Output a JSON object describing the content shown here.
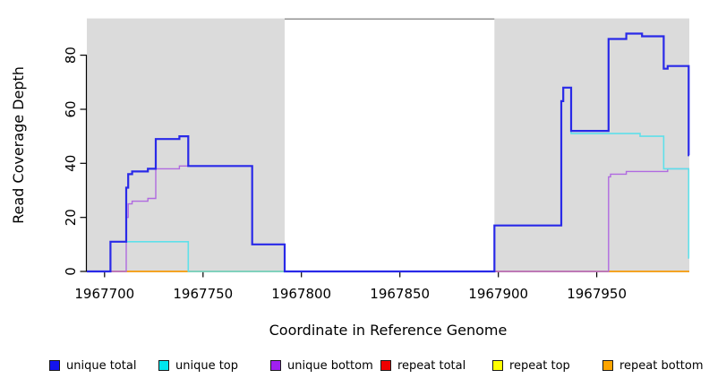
{
  "chart_data": {
    "type": "line",
    "subtype": "step",
    "title": "",
    "xlabel": "Coordinate in Reference Genome",
    "ylabel": "Read Coverage Depth",
    "xlim": [
      1967691,
      1967997
    ],
    "ylim": [
      0,
      93.6
    ],
    "x_ticks": [
      1967700,
      1967750,
      1967800,
      1967850,
      1967900,
      1967950
    ],
    "y_ticks": [
      0,
      20,
      40,
      60,
      80
    ],
    "grid": false,
    "shaded_regions": {
      "color": "#dbdbdb",
      "ranges": [
        [
          1967691,
          1967791.5
        ],
        [
          1967898,
          1967997
        ]
      ]
    },
    "gap_top_border": {
      "color": "#8a8a8a",
      "range": [
        1967791.5,
        1967898
      ]
    },
    "axis_color": "#000000",
    "series": [
      {
        "name": "repeat total",
        "slug": "repeat-total",
        "color": "#ee0000",
        "width": 1.2,
        "steps": [
          [
            1967691,
            0
          ]
        ]
      },
      {
        "name": "repeat top",
        "slug": "repeat-top",
        "color": "#ffff00",
        "width": 1.2,
        "steps": [
          [
            1967691,
            0
          ]
        ]
      },
      {
        "name": "repeat bottom",
        "slug": "repeat-bottom",
        "color": "#ffa30f",
        "width": 1.6,
        "steps": [
          [
            1967691,
            0
          ]
        ]
      },
      {
        "name": "unique bottom",
        "slug": "unique-bottom",
        "color": "#b06ae0",
        "width": 1.4,
        "steps": [
          [
            1967691,
            0
          ],
          [
            1967711,
            20
          ],
          [
            1967712,
            25
          ],
          [
            1967714,
            26
          ],
          [
            1967722,
            27
          ],
          [
            1967726,
            38
          ],
          [
            1967738,
            39
          ],
          [
            1967775,
            10
          ],
          [
            1967791.5,
            0
          ],
          [
            1967956,
            35
          ],
          [
            1967957,
            36
          ],
          [
            1967965,
            37
          ],
          [
            1967986,
            38
          ]
        ]
      },
      {
        "name": "unique top",
        "slug": "unique-top",
        "color": "#5fe0ea",
        "width": 1.6,
        "steps": [
          [
            1967691,
            0
          ],
          [
            1967703,
            11
          ],
          [
            1967742.5,
            0
          ],
          [
            1967898,
            17
          ],
          [
            1967932,
            63
          ],
          [
            1967933,
            68
          ],
          [
            1967937,
            51
          ],
          [
            1967972,
            50
          ],
          [
            1967984,
            38
          ],
          [
            1967996.7,
            5
          ]
        ]
      },
      {
        "name": "unique total",
        "slug": "unique-total",
        "color": "#2929e8",
        "width": 2.2,
        "steps": [
          [
            1967691,
            0
          ],
          [
            1967703,
            11
          ],
          [
            1967711,
            31
          ],
          [
            1967712,
            36
          ],
          [
            1967714,
            37
          ],
          [
            1967722,
            38
          ],
          [
            1967726,
            49
          ],
          [
            1967738,
            50
          ],
          [
            1967742.5,
            39
          ],
          [
            1967775,
            10
          ],
          [
            1967791.5,
            0
          ],
          [
            1967898,
            17
          ],
          [
            1967932,
            63
          ],
          [
            1967933,
            68
          ],
          [
            1967937,
            52
          ],
          [
            1967956,
            86
          ],
          [
            1967965,
            88
          ],
          [
            1967973,
            87
          ],
          [
            1967984,
            75
          ],
          [
            1967986,
            76
          ],
          [
            1967996.7,
            43
          ]
        ]
      }
    ],
    "legend": {
      "position": "bottom",
      "entries": [
        {
          "label": "unique total",
          "slug": "unique-total",
          "color": "#1414ee"
        },
        {
          "label": "unique top",
          "slug": "unique-top",
          "color": "#00e6ee"
        },
        {
          "label": "unique bottom",
          "slug": "unique-bottom",
          "color": "#a020f0"
        },
        {
          "label": "repeat total",
          "slug": "repeat-total",
          "color": "#ee0000"
        },
        {
          "label": "repeat top",
          "slug": "repeat-top",
          "color": "#ffff00"
        },
        {
          "label": "repeat bottom",
          "slug": "repeat-bottom",
          "color": "#ffa500"
        }
      ]
    }
  }
}
